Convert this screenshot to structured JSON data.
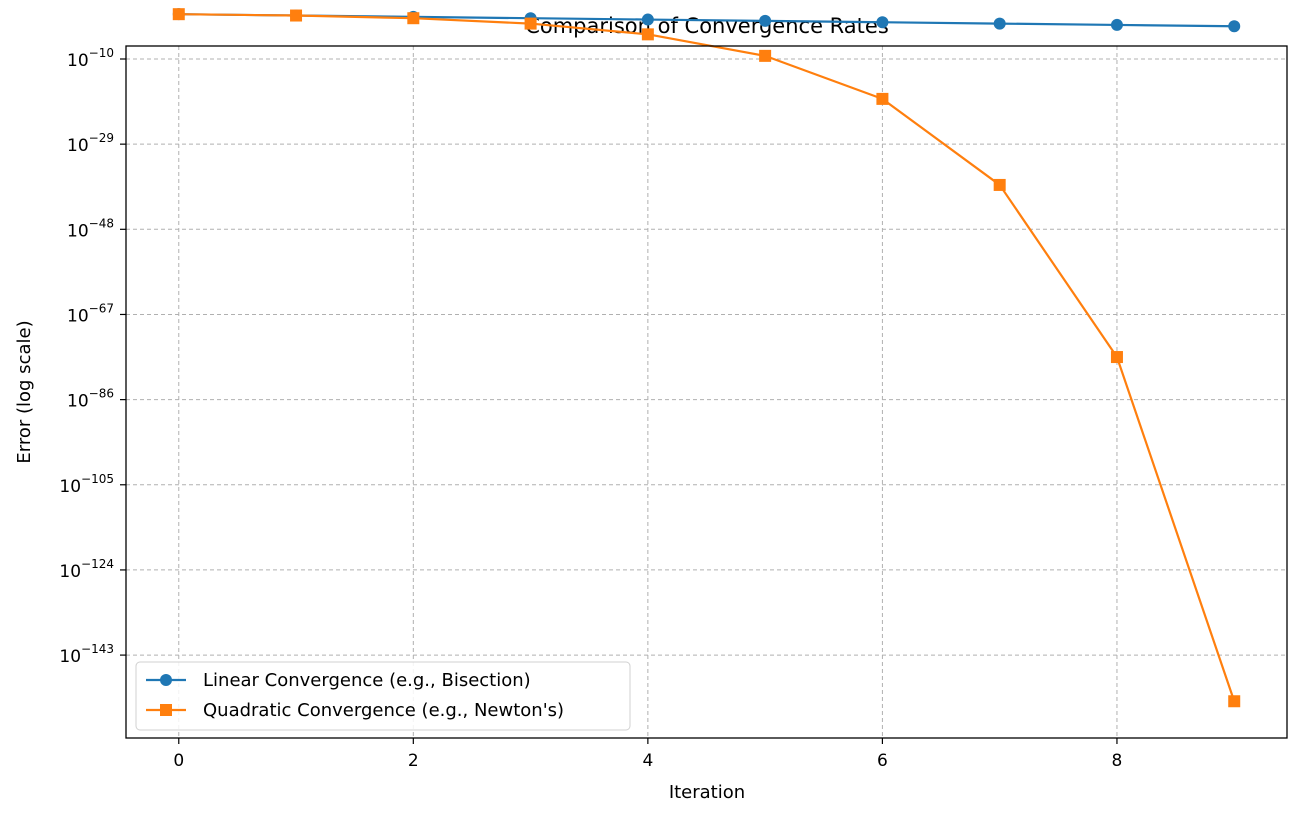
{
  "chart_data": {
    "type": "line",
    "title": "Comparison of Convergence Rates",
    "xlabel": "Iteration",
    "ylabel": "Error (log scale)",
    "yscale": "log",
    "y_is_log10_exponent": true,
    "xlim": [
      -0.45,
      9.45
    ],
    "ylim_log10": [
      -161.5,
      -7.1
    ],
    "x_ticks": [
      0,
      2,
      4,
      6,
      8
    ],
    "y_ticks_log10": [
      -10,
      -29,
      -48,
      -67,
      -86,
      -105,
      -124,
      -143
    ],
    "y_tick_base": "10",
    "grid": true,
    "legend_position": "lower-left",
    "x": [
      0,
      1,
      2,
      3,
      4,
      5,
      6,
      7,
      8,
      9
    ],
    "series": [
      {
        "name": "Linear Convergence (e.g., Bisection)",
        "color": "#1f77b4",
        "marker": "circle",
        "log10_values": [
          0,
          -0.3,
          -0.6,
          -0.9,
          -1.2,
          -1.5,
          -1.8,
          -2.1,
          -2.4,
          -2.7
        ]
      },
      {
        "name": "Quadratic Convergence (e.g., Newton's)",
        "color": "#ff7f0e",
        "marker": "square",
        "log10_values": [
          0,
          -0.3,
          -0.9,
          -2.1,
          -4.5,
          -9.3,
          -18.9,
          -38.1,
          -76.5,
          -153.3
        ]
      }
    ]
  }
}
